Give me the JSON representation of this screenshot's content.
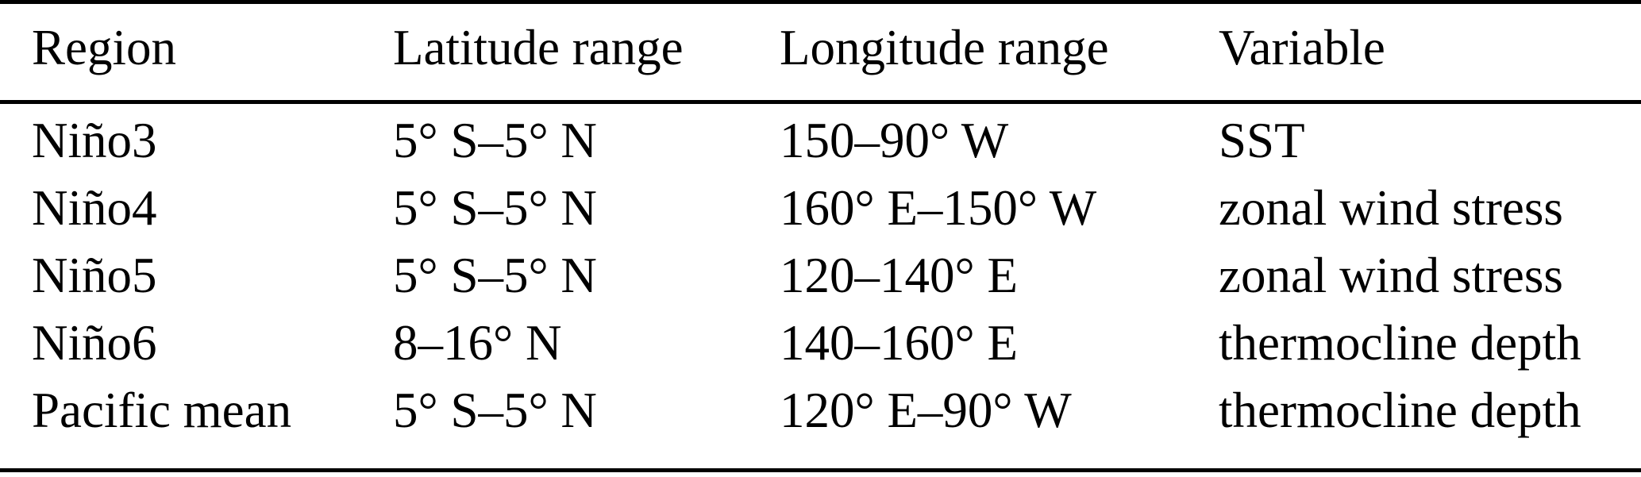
{
  "table": {
    "colors": {
      "text": "#000000",
      "background": "#ffffff",
      "rule": "#000000"
    },
    "columns": [
      {
        "label": "Region"
      },
      {
        "label": "Latitude range"
      },
      {
        "label": "Longitude range"
      },
      {
        "label": "Variable"
      }
    ],
    "rows": [
      {
        "region": "Niño3",
        "latitude": "5° S–5° N",
        "longitude": "150–90° W",
        "variable": "SST"
      },
      {
        "region": "Niño4",
        "latitude": "5° S–5° N",
        "longitude": "160° E–150° W",
        "variable": "zonal wind stress"
      },
      {
        "region": "Niño5",
        "latitude": "5° S–5° N",
        "longitude": "120–140° E",
        "variable": "zonal wind stress"
      },
      {
        "region": "Niño6",
        "latitude": "8–16° N",
        "longitude": "140–160° E",
        "variable": "thermocline depth"
      },
      {
        "region": "Pacific mean",
        "latitude": "5° S–5° N",
        "longitude": "120° E–90° W",
        "variable": "thermocline depth"
      }
    ]
  }
}
